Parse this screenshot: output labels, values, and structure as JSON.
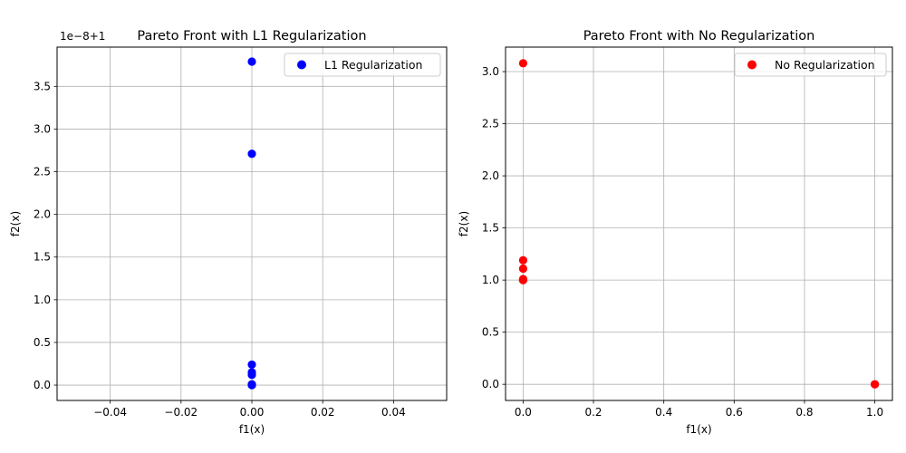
{
  "chart_data": [
    {
      "type": "scatter",
      "title": "Pareto Front with L1 Regularization",
      "xlabel": "f1(x)",
      "ylabel": "f2(x)",
      "offset_text": "1e−8+1",
      "xlim": [
        -0.055,
        0.055
      ],
      "ylim": [
        -0.18,
        3.96
      ],
      "x_ticks": [
        -0.04,
        -0.02,
        0.0,
        0.02,
        0.04
      ],
      "x_tick_labels": [
        "−0.04",
        "−0.02",
        "0.00",
        "0.02",
        "0.04"
      ],
      "y_ticks": [
        0.0,
        0.5,
        1.0,
        1.5,
        2.0,
        2.5,
        3.0,
        3.5
      ],
      "y_tick_labels": [
        "0.0",
        "0.5",
        "1.0",
        "1.5",
        "2.0",
        "2.5",
        "3.0",
        "3.5"
      ],
      "grid": true,
      "legend_position": "upper right",
      "series": [
        {
          "name": "L1 Regularization",
          "color": "#0000ff",
          "x": [
            0,
            0,
            0,
            0,
            0,
            0,
            0,
            0
          ],
          "y": [
            3.79,
            2.71,
            0.24,
            0.15,
            0.12,
            0.01,
            0.0,
            0.0
          ]
        }
      ]
    },
    {
      "type": "scatter",
      "title": "Pareto Front with No Regularization",
      "xlabel": "f1(x)",
      "ylabel": "f2(x)",
      "xlim": [
        -0.05,
        1.05
      ],
      "ylim": [
        -0.155,
        3.235
      ],
      "x_ticks": [
        0.0,
        0.2,
        0.4,
        0.6,
        0.8,
        1.0
      ],
      "x_tick_labels": [
        "0.0",
        "0.2",
        "0.4",
        "0.6",
        "0.8",
        "1.0"
      ],
      "y_ticks": [
        0.0,
        0.5,
        1.0,
        1.5,
        2.0,
        2.5,
        3.0
      ],
      "y_tick_labels": [
        "0.0",
        "0.5",
        "1.0",
        "1.5",
        "2.0",
        "2.5",
        "3.0"
      ],
      "grid": true,
      "legend_position": "upper right",
      "series": [
        {
          "name": "No Regularization",
          "color": "#ff0000",
          "x": [
            0,
            0,
            0,
            0,
            0,
            0,
            1,
            1
          ],
          "y": [
            3.08,
            1.19,
            1.11,
            1.01,
            1.0,
            1.0,
            0.0,
            0.0
          ]
        }
      ]
    }
  ]
}
